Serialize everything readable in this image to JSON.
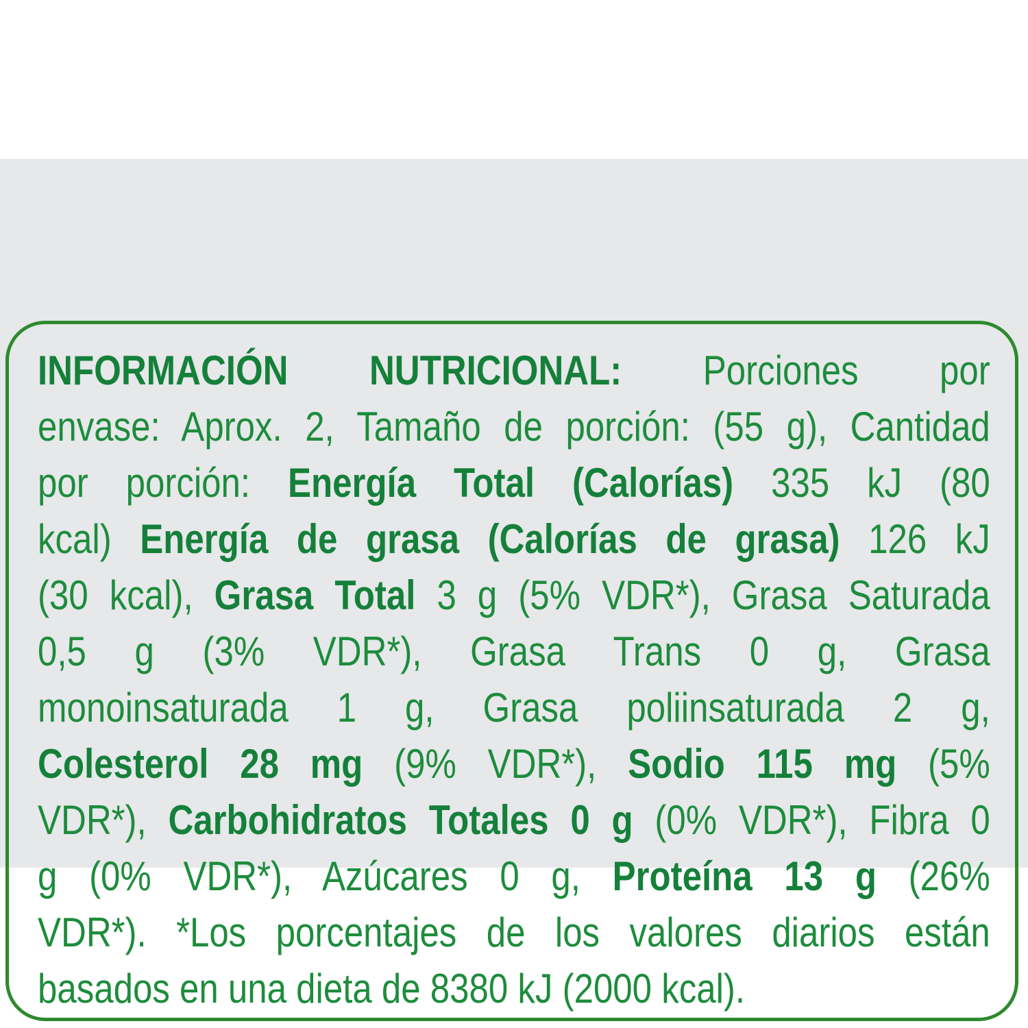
{
  "label": {
    "colors": {
      "text": "#1d8c3c",
      "border": "#2e8a2e",
      "background": "#e6e8ea"
    },
    "lines": [
      [
        {
          "t": "INFORMACIÓN NUTRICIONAL:",
          "b": true
        },
        {
          "t": " Porciones por",
          "b": false
        }
      ],
      [
        {
          "t": "envase: Aprox. 2, Tamaño de porción: (55 g), Cantidad",
          "b": false
        }
      ],
      [
        {
          "t": "por porción: ",
          "b": false
        },
        {
          "t": "Energía Total (Calorías)",
          "b": true
        },
        {
          "t": " 335 kJ (80",
          "b": false
        }
      ],
      [
        {
          "t": "kcal) ",
          "b": false
        },
        {
          "t": "Energía de grasa (Calorías de grasa)",
          "b": true
        },
        {
          "t": " 126 kJ",
          "b": false
        }
      ],
      [
        {
          "t": "(30 kcal), ",
          "b": false
        },
        {
          "t": "Grasa Total",
          "b": true
        },
        {
          "t": " 3 g (5% VDR*), Grasa Saturada",
          "b": false
        }
      ],
      [
        {
          "t": "0,5 g (3% VDR*), Grasa Trans 0 g, Grasa",
          "b": false
        }
      ],
      [
        {
          "t": "monoinsaturada 1 g, Grasa poliinsaturada 2 g,",
          "b": false
        }
      ],
      [
        {
          "t": "Colesterol 28 mg",
          "b": true
        },
        {
          "t": " (9% VDR*), ",
          "b": false
        },
        {
          "t": "Sodio 115 mg",
          "b": true
        },
        {
          "t": " (5%",
          "b": false
        }
      ],
      [
        {
          "t": "VDR*), ",
          "b": false
        },
        {
          "t": "Carbohidratos Totales 0 g",
          "b": true
        },
        {
          "t": " (0% VDR*), Fibra 0",
          "b": false
        }
      ],
      [
        {
          "t": "g (0% VDR*), Azúcares 0 g, ",
          "b": false
        },
        {
          "t": "Proteína 13 g",
          "b": true
        },
        {
          "t": " (26%",
          "b": false
        }
      ],
      [
        {
          "t": "VDR*). *Los porcentajes de los valores diarios están",
          "b": false
        }
      ],
      [
        {
          "t": "basados en una dieta de 8380 kJ (2000 kcal).",
          "b": false
        }
      ]
    ]
  }
}
